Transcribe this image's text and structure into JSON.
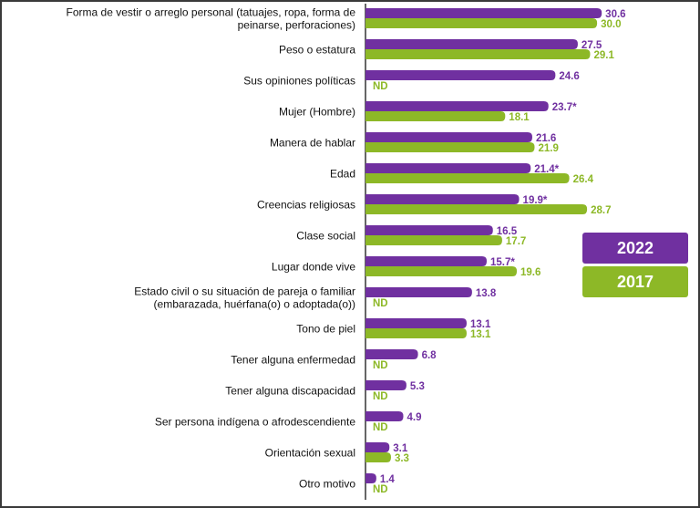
{
  "chart_data": {
    "type": "bar",
    "orientation": "horizontal",
    "categories": [
      "Forma de vestir o arreglo personal (tatuajes, ropa, forma de peinarse, perforaciones)",
      "Peso o estatura",
      "Sus opiniones políticas",
      "Mujer (Hombre)",
      "Manera de hablar",
      "Edad",
      "Creencias religiosas",
      "Clase social",
      "Lugar donde vive",
      "Estado civil o su situación de pareja o familiar (embarazada, huérfana(o) o adoptada(o))",
      "Tono de piel",
      "Tener alguna enfermedad",
      "Tener alguna discapacidad",
      "Ser persona indígena o afrodescendiente",
      "Orientación sexual",
      "Otro motivo"
    ],
    "category_lines": [
      [
        "Forma de vestir o arreglo personal (tatuajes, ropa, forma de",
        "peinarse, perforaciones)"
      ],
      [
        "Peso o estatura"
      ],
      [
        "Sus opiniones políticas"
      ],
      [
        "Mujer (Hombre)"
      ],
      [
        "Manera de hablar"
      ],
      [
        "Edad"
      ],
      [
        "Creencias religiosas"
      ],
      [
        "Clase social"
      ],
      [
        "Lugar donde vive"
      ],
      [
        "Estado civil o su situación de pareja o familiar",
        "(embarazada, huérfana(o) o adoptada(o))"
      ],
      [
        "Tono de piel"
      ],
      [
        "Tener alguna enfermedad"
      ],
      [
        "Tener alguna discapacidad"
      ],
      [
        "Ser persona indígena o afrodescendiente"
      ],
      [
        "Orientación sexual"
      ],
      [
        "Otro motivo"
      ]
    ],
    "series": [
      {
        "name": "2022",
        "color": "#7030A0",
        "values": [
          30.6,
          27.5,
          24.6,
          23.7,
          21.6,
          21.4,
          19.9,
          16.5,
          15.7,
          13.8,
          13.1,
          6.8,
          5.3,
          4.9,
          3.1,
          1.4
        ],
        "labels": [
          "30.6",
          "27.5",
          "24.6",
          "23.7*",
          "21.6",
          "21.4*",
          "19.9*",
          "16.5",
          "15.7*",
          "13.8",
          "13.1",
          "6.8",
          "5.3",
          "4.9",
          "3.1",
          "1.4"
        ]
      },
      {
        "name": "2017",
        "color": "#8DB827",
        "values": [
          30.0,
          29.1,
          null,
          18.1,
          21.9,
          26.4,
          28.7,
          17.7,
          19.6,
          null,
          13.1,
          null,
          null,
          null,
          3.3,
          null
        ],
        "labels": [
          "30.0",
          "29.1",
          "ND",
          "18.1",
          "21.9",
          "26.4",
          "28.7",
          "17.7",
          "19.6",
          "ND",
          "13.1",
          "ND",
          "ND",
          "ND",
          "3.3",
          "ND"
        ]
      }
    ],
    "xlim": [
      0,
      32
    ],
    "grid": false,
    "legend_position": "right"
  },
  "legend": {
    "items": [
      {
        "label": "2022",
        "color": "#7030A0"
      },
      {
        "label": "2017",
        "color": "#8DB827"
      }
    ]
  }
}
